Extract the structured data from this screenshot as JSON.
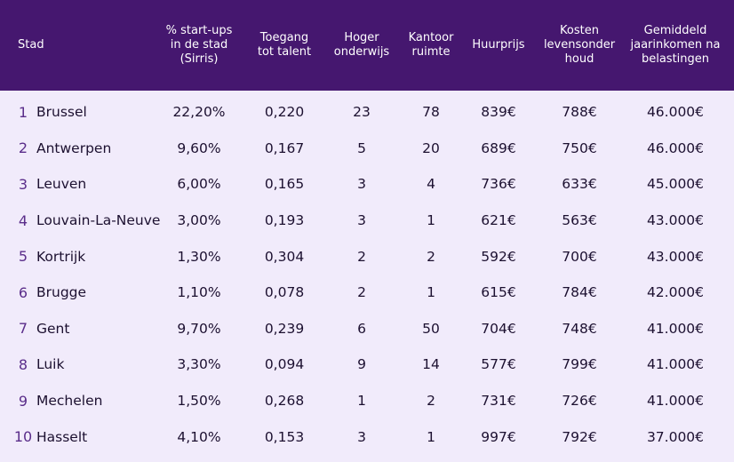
{
  "colors": {
    "header_bg": "#45176f",
    "header_text": "#ffffff",
    "body_bg": "#f1ebfb",
    "rank_color": "#5a2d8a",
    "text": "#1c1030"
  },
  "chart_data": {
    "type": "table",
    "columns": [
      "Stad",
      "% start-ups\nin de stad\n(Sirris)",
      "Toegang\ntot talent",
      "Hoger\nonderwijs",
      "Kantoor\nruimte",
      "Huurprijs",
      "Kosten\nlevensonder\nhoud",
      "Gemiddeld\njaarinkomen na\nbelastingen"
    ],
    "rows": [
      {
        "rank": "1",
        "stad": "Brussel",
        "startups": "22,20%",
        "talent": "0,220",
        "onderwijs": "23",
        "kantoor": "78",
        "huur": "839€",
        "kosten": "788€",
        "inkomen": "46.000€"
      },
      {
        "rank": "2",
        "stad": "Antwerpen",
        "startups": "9,60%",
        "talent": "0,167",
        "onderwijs": "5",
        "kantoor": "20",
        "huur": "689€",
        "kosten": "750€",
        "inkomen": "46.000€"
      },
      {
        "rank": "3",
        "stad": "Leuven",
        "startups": "6,00%",
        "talent": "0,165",
        "onderwijs": "3",
        "kantoor": "4",
        "huur": "736€",
        "kosten": "633€",
        "inkomen": "45.000€"
      },
      {
        "rank": "4",
        "stad": "Louvain-La-Neuve",
        "startups": "3,00%",
        "talent": "0,193",
        "onderwijs": "3",
        "kantoor": "1",
        "huur": "621€",
        "kosten": "563€",
        "inkomen": "43.000€"
      },
      {
        "rank": "5",
        "stad": "Kortrijk",
        "startups": "1,30%",
        "talent": "0,304",
        "onderwijs": "2",
        "kantoor": "2",
        "huur": "592€",
        "kosten": "700€",
        "inkomen": "43.000€"
      },
      {
        "rank": "6",
        "stad": "Brugge",
        "startups": "1,10%",
        "talent": "0,078",
        "onderwijs": "2",
        "kantoor": "1",
        "huur": "615€",
        "kosten": "784€",
        "inkomen": "42.000€"
      },
      {
        "rank": "7",
        "stad": "Gent",
        "startups": "9,70%",
        "talent": "0,239",
        "onderwijs": "6",
        "kantoor": "50",
        "huur": "704€",
        "kosten": "748€",
        "inkomen": "41.000€"
      },
      {
        "rank": "8",
        "stad": "Luik",
        "startups": "3,30%",
        "talent": "0,094",
        "onderwijs": "9",
        "kantoor": "14",
        "huur": "577€",
        "kosten": "799€",
        "inkomen": "41.000€"
      },
      {
        "rank": "9",
        "stad": "Mechelen",
        "startups": "1,50%",
        "talent": "0,268",
        "onderwijs": "1",
        "kantoor": "2",
        "huur": "731€",
        "kosten": "726€",
        "inkomen": "41.000€"
      },
      {
        "rank": "10",
        "stad": "Hasselt",
        "startups": "4,10%",
        "talent": "0,153",
        "onderwijs": "3",
        "kantoor": "1",
        "huur": "997€",
        "kosten": "792€",
        "inkomen": "37.000€"
      }
    ]
  }
}
